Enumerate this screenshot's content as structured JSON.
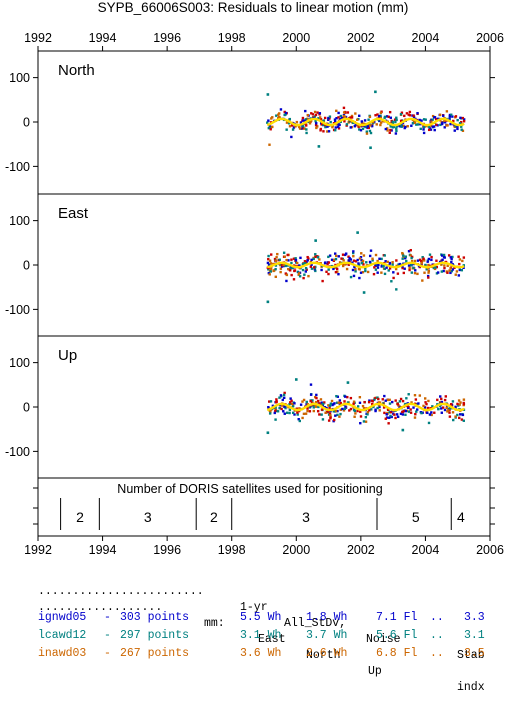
{
  "title": "SYPB_66006S003: Residuals to linear motion (mm)",
  "chart_data": {
    "type": "scatter",
    "x_range": [
      1992,
      2006
    ],
    "x_ticks": [
      1992,
      1994,
      1996,
      1998,
      2000,
      2002,
      2004,
      2006
    ],
    "y_range": [
      -160,
      160
    ],
    "y_ticks": [
      100,
      0,
      -100
    ],
    "data_start": 1999.1,
    "data_end": 2005.2,
    "series_colors": [
      "#0000cc",
      "#008080",
      "#cc6600",
      "#cc0000"
    ],
    "smooth_color": "#ffdd00",
    "panels": [
      {
        "label": "North",
        "seasonal_amplitude": 7,
        "scatter_sd": 11,
        "outliers": [
          [
            1999.12,
            62
          ],
          [
            2002.45,
            68
          ],
          [
            2002.3,
            -58
          ],
          [
            2000.7,
            -55
          ]
        ]
      },
      {
        "label": "East",
        "seasonal_amplitude": 5,
        "scatter_sd": 13,
        "outliers": [
          [
            1999.12,
            -83
          ],
          [
            2001.9,
            73
          ],
          [
            2000.6,
            55
          ],
          [
            2002.1,
            -62
          ]
        ]
      },
      {
        "label": "Up",
        "seasonal_amplitude": 7,
        "scatter_sd": 13,
        "outliers": [
          [
            1999.12,
            -58
          ],
          [
            2000.0,
            62
          ],
          [
            2001.6,
            55
          ],
          [
            2003.3,
            -52
          ]
        ]
      }
    ],
    "satellites": {
      "title": "Number of DORIS satellites used for positioning",
      "boundaries": [
        1992.7,
        1993.9,
        1996.9,
        1998.0,
        2002.5,
        2004.8
      ],
      "segments": [
        {
          "value": "2",
          "x": 1993.3
        },
        {
          "value": "3",
          "x": 1995.4
        },
        {
          "value": "2",
          "x": 1997.45
        },
        {
          "value": "3",
          "x": 2000.3
        },
        {
          "value": "5",
          "x": 2003.7
        },
        {
          "value": "4",
          "x": 2005.1
        }
      ]
    }
  },
  "stats": {
    "header1": {
      "dots": "........................",
      "col1": "1-yr",
      "col2": "All_StDv,",
      "col3": "Noise",
      "col4": "Stab"
    },
    "header2": {
      "dots": "..................",
      "unit": "mm:",
      "col1": "East",
      "col2": "North",
      "col3": "Up",
      "col4": "indx"
    },
    "rows": [
      {
        "name": "ignwd05",
        "sep": "-",
        "count": "303 points",
        "east": "5.5 Wh",
        "north": "1.8 Wh",
        "up": "7.1 Fl",
        "dots": "..",
        "stab": "3.3",
        "color": "#0000cc"
      },
      {
        "name": "lcawd12",
        "sep": "-",
        "count": "297 points",
        "east": "3.1 Wh",
        "north": "3.7 Wh",
        "up": "5.6 Fl",
        "dots": "..",
        "stab": "3.1",
        "color": "#008080"
      },
      {
        "name": "inawd03",
        "sep": "-",
        "count": "267 points",
        "east": "3.6 Wh",
        "north": "2.6 Wh",
        "up": "6.8 Fl",
        "dots": "..",
        "stab": "3.5",
        "color": "#cc6600"
      }
    ]
  }
}
